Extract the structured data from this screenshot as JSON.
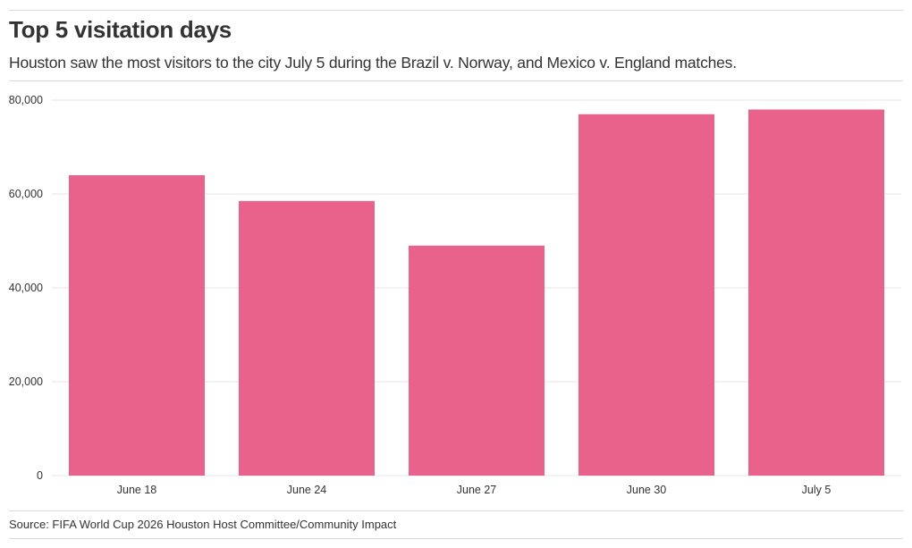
{
  "title": "Top 5 visitation days",
  "subtitle": "Houston saw the most visitors to the city July 5 during the Brazil v. Norway, and Mexico v. England matches.",
  "source": "Source: FIFA World Cup 2026 Houston Host Committee/Community Impact",
  "colors": {
    "bar": "#e8628c",
    "grid": "#e6e6e6",
    "text": "#333333"
  },
  "chart_data": {
    "type": "bar",
    "categories": [
      "June 18",
      "June 24",
      "June 27",
      "June 30",
      "July 5"
    ],
    "values": [
      64000,
      58500,
      49000,
      77000,
      78000
    ],
    "ylim": [
      0,
      80000
    ],
    "yticks": [
      0,
      20000,
      40000,
      60000,
      80000
    ],
    "ytick_labels": [
      "0",
      "20,000",
      "40,000",
      "60,000",
      "80,000"
    ],
    "grid": true,
    "legend": "none"
  }
}
